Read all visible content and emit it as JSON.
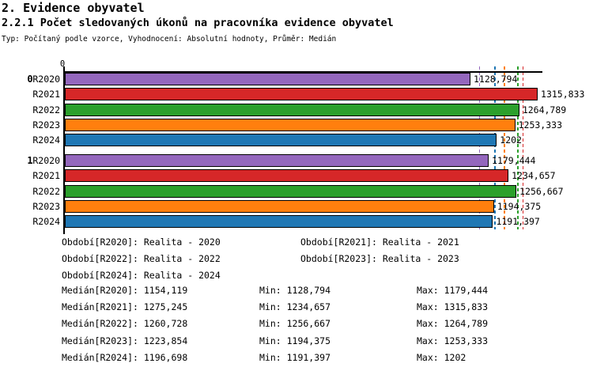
{
  "header": {
    "title": "2. Evidence obyvatel",
    "subtitle": "2.2.1 Počet sledovaných úkonů na pracovníka evidence obyvatel",
    "meta": "Typ: Počítaný podle vzorce, Vyhodnocení: Absolutní hodnoty, Průměr: Medián"
  },
  "chart_data": {
    "type": "bar",
    "orientation": "horizontal",
    "title": "2.2.1 Počet sledovaných úkonů na pracovníka evidence obyvatel",
    "xlabel": "",
    "ylabel": "",
    "xlim": [
      0,
      1329
    ],
    "zero_tick_label": "0",
    "grid": false,
    "series_colors": {
      "R2020": "#9467bd",
      "R2021": "#d62728",
      "R2022": "#2ca02c",
      "R2023": "#ff7f0e",
      "R2024": "#1f77b4"
    },
    "groups": [
      {
        "label": "0",
        "bars": [
          {
            "series": "R2020",
            "value": 1128.794,
            "label": "1128,794"
          },
          {
            "series": "R2021",
            "value": 1315.833,
            "label": "1315,833"
          },
          {
            "series": "R2022",
            "value": 1264.789,
            "label": "1264,789"
          },
          {
            "series": "R2023",
            "value": 1253.333,
            "label": "1253,333"
          },
          {
            "series": "R2024",
            "value": 1202,
            "label": "1202"
          }
        ]
      },
      {
        "label": "1",
        "bars": [
          {
            "series": "R2020",
            "value": 1179.444,
            "label": "1179,444"
          },
          {
            "series": "R2021",
            "value": 1234.657,
            "label": "1234,657"
          },
          {
            "series": "R2022",
            "value": 1256.667,
            "label": "1256,667"
          },
          {
            "series": "R2023",
            "value": 1194.375,
            "label": "1194,375"
          },
          {
            "series": "R2024",
            "value": 1191.397,
            "label": "1191,397"
          }
        ]
      }
    ],
    "median_lines": [
      {
        "series": "R2020",
        "value": 1154.119,
        "color": "#9467bd"
      },
      {
        "series": "R2024",
        "value": 1196.698,
        "color": "#1f77b4"
      },
      {
        "series": "R2023",
        "value": 1223.854,
        "color": "#ff7f0e"
      },
      {
        "series": "R2022",
        "value": 1260.728,
        "color": "#2ca02c"
      },
      {
        "series": "R2021",
        "value": 1275.245,
        "color": "#d62728"
      }
    ]
  },
  "legend": {
    "rows": [
      [
        "Období[R2020]: Realita - 2020",
        "Období[R2021]: Realita - 2021"
      ],
      [
        "Období[R2022]: Realita - 2022",
        "Období[R2023]: Realita - 2023"
      ],
      [
        "Období[R2024]: Realita - 2024",
        ""
      ]
    ]
  },
  "stats": {
    "rows": [
      {
        "median": "Medián[R2020]: 1154,119",
        "min": "Min: 1128,794",
        "max": "Max: 1179,444"
      },
      {
        "median": "Medián[R2021]: 1275,245",
        "min": "Min: 1234,657",
        "max": "Max: 1315,833"
      },
      {
        "median": "Medián[R2022]: 1260,728",
        "min": "Min: 1256,667",
        "max": "Max: 1264,789"
      },
      {
        "median": "Medián[R2023]: 1223,854",
        "min": "Min: 1194,375",
        "max": "Max: 1253,333"
      },
      {
        "median": "Medián[R2024]: 1196,698",
        "min": "Min: 1191,397",
        "max": "Max: 1202"
      }
    ]
  }
}
